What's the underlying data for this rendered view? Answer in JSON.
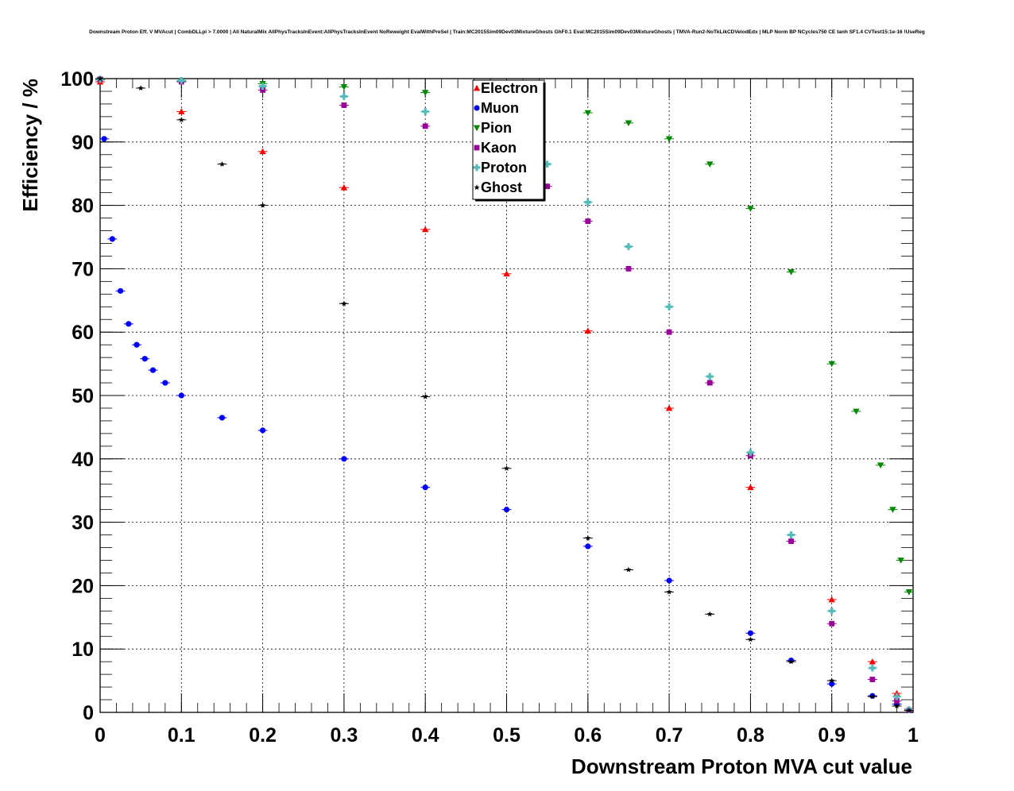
{
  "chart_data": {
    "type": "scatter",
    "title": "Downstream Proton Eff. V MVAcut | CombDLLpi > 7.0000 | All NaturalMix AllPhysTracksInEvent:AllPhysTracksInEvent NoReweight EvalWithPreSel | Train:MC2015Sim09Dev03MixtureGhosts GhF0.1 Eval:MC2015Sim09Dev03MixtureGhosts | TMVA-Run2-NoTkLikCDVelodEdx | MLP Norm BP NCycles750 CE tanh SF1.4 CVTest15:1e-16 !UseReg",
    "xlabel": "Downstream Proton MVA cut value",
    "ylabel": "Efficiency / %",
    "xlim": [
      0,
      1
    ],
    "ylim": [
      0,
      100
    ],
    "xticks": [
      0,
      0.1,
      0.2,
      0.3,
      0.4,
      0.5,
      0.6,
      0.7,
      0.8,
      0.9,
      1
    ],
    "xtick_labels": [
      "0",
      "0.1",
      "0.2",
      "0.3",
      "0.4",
      "0.5",
      "0.6",
      "0.7",
      "0.8",
      "0.9",
      "1"
    ],
    "yticks": [
      0,
      10,
      20,
      30,
      40,
      50,
      60,
      70,
      80,
      90,
      100
    ],
    "ytick_labels": [
      "0",
      "10",
      "20",
      "30",
      "40",
      "50",
      "60",
      "70",
      "80",
      "90",
      "100"
    ],
    "grid": true,
    "legend_position": "top-center",
    "series": [
      {
        "name": "Electron",
        "color": "#ff0000",
        "marker": "triangle-up",
        "x": [
          0,
          0.1,
          0.2,
          0.3,
          0.4,
          0.5,
          0.6,
          0.7,
          0.8,
          0.9,
          0.95,
          0.98,
          0.995
        ],
        "y": [
          99.5,
          94.8,
          88.5,
          82.8,
          76.2,
          69.2,
          60.2,
          48.0,
          35.5,
          17.8,
          8.0,
          3.0,
          0.5
        ]
      },
      {
        "name": "Muon",
        "color": "#0000ff",
        "marker": "circle",
        "x": [
          0.005,
          0.015,
          0.025,
          0.035,
          0.045,
          0.055,
          0.065,
          0.08,
          0.1,
          0.15,
          0.2,
          0.3,
          0.4,
          0.5,
          0.6,
          0.7,
          0.8,
          0.85,
          0.9,
          0.95,
          0.98,
          0.995
        ],
        "y": [
          90.5,
          74.7,
          66.5,
          61.3,
          58.0,
          55.8,
          54.0,
          52.0,
          50.0,
          46.5,
          44.5,
          40.0,
          35.5,
          32.0,
          26.2,
          20.8,
          12.5,
          8.2,
          4.5,
          2.6,
          1.3,
          0.3
        ]
      },
      {
        "name": "Pion",
        "color": "#008800",
        "marker": "triangle-down",
        "x": [
          0,
          0.1,
          0.2,
          0.3,
          0.4,
          0.5,
          0.6,
          0.65,
          0.7,
          0.75,
          0.8,
          0.85,
          0.9,
          0.93,
          0.96,
          0.975,
          0.985,
          0.995
        ],
        "y": [
          99.8,
          99.6,
          99.2,
          98.7,
          97.8,
          96.3,
          94.6,
          93.0,
          90.5,
          86.5,
          79.5,
          69.5,
          55.0,
          47.5,
          39.0,
          32.0,
          24.0,
          19.0
        ]
      },
      {
        "name": "Kaon",
        "color": "#990099",
        "marker": "square",
        "x": [
          0,
          0.1,
          0.2,
          0.3,
          0.4,
          0.5,
          0.55,
          0.6,
          0.65,
          0.7,
          0.75,
          0.8,
          0.85,
          0.9,
          0.95,
          0.98,
          0.995
        ],
        "y": [
          99.9,
          99.5,
          98.2,
          95.8,
          92.5,
          87.2,
          83.0,
          77.5,
          70.0,
          60.0,
          52.0,
          40.5,
          27.0,
          14.0,
          5.2,
          1.8,
          0.3
        ]
      },
      {
        "name": "Proton",
        "color": "#55bbbb",
        "marker": "cross",
        "x": [
          0,
          0.1,
          0.2,
          0.3,
          0.4,
          0.5,
          0.55,
          0.6,
          0.65,
          0.7,
          0.75,
          0.8,
          0.85,
          0.9,
          0.95,
          0.98,
          0.995
        ],
        "y": [
          99.9,
          99.7,
          98.8,
          97.2,
          94.8,
          90.5,
          86.5,
          80.5,
          73.5,
          64.0,
          53.0,
          41.0,
          28.0,
          16.0,
          7.0,
          2.5,
          0.4
        ]
      },
      {
        "name": "Ghost",
        "color": "#000000",
        "marker": "star",
        "x": [
          0,
          0.05,
          0.1,
          0.15,
          0.2,
          0.3,
          0.4,
          0.5,
          0.6,
          0.65,
          0.7,
          0.75,
          0.8,
          0.85,
          0.9,
          0.95,
          0.98,
          0.995
        ],
        "y": [
          100,
          98.5,
          93.5,
          86.5,
          80.0,
          64.5,
          49.8,
          38.5,
          27.5,
          22.5,
          19.0,
          15.5,
          11.5,
          8.0,
          5.0,
          2.5,
          1.0,
          0.3
        ]
      }
    ]
  }
}
